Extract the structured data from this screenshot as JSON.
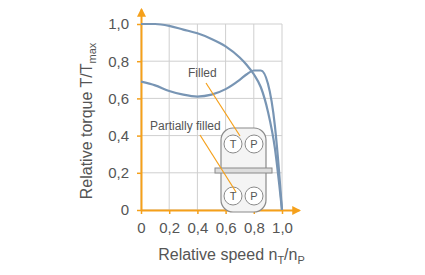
{
  "chart_data": {
    "type": "line",
    "x_label": [
      {
        "text": "Relative speed n"
      },
      {
        "sub": "T"
      },
      {
        "text": "/n"
      },
      {
        "sub": "P"
      }
    ],
    "y_label": [
      {
        "text": "Relative torque T/T"
      },
      {
        "sub": "max"
      }
    ],
    "x": [
      0,
      0.1,
      0.2,
      0.3,
      0.4,
      0.5,
      0.6,
      0.7,
      0.75,
      0.8,
      0.85,
      0.9,
      0.95,
      0.98,
      1.0
    ],
    "series": [
      {
        "name": "Filled",
        "color": "#7895b4",
        "values": [
          1.0,
          1.0,
          0.99,
          0.97,
          0.95,
          0.92,
          0.88,
          0.82,
          0.78,
          0.73,
          0.66,
          0.53,
          0.33,
          0.14,
          0
        ]
      },
      {
        "name": "Partially filled",
        "color": "#7895b4",
        "values": [
          0.69,
          0.67,
          0.64,
          0.62,
          0.61,
          0.62,
          0.65,
          0.7,
          0.73,
          0.75,
          0.75,
          0.68,
          0.45,
          0.2,
          0
        ]
      }
    ],
    "xlim": [
      0,
      1.12
    ],
    "ylim": [
      0,
      1.08
    ],
    "xticks": [
      0,
      {
        "value": 0.2,
        "label": "0,2"
      },
      {
        "value": 0.4,
        "label": "0,4"
      },
      {
        "value": 0.6,
        "label": "0,6"
      },
      {
        "value": 0.8,
        "label": "0,8"
      },
      {
        "value": 1.0,
        "label": "1,0"
      }
    ],
    "yticks": [
      0,
      {
        "value": 0.2,
        "label": "0,2"
      },
      {
        "value": 0.4,
        "label": "0,4"
      },
      {
        "value": 0.6,
        "label": "0,6"
      },
      {
        "value": 0.8,
        "label": "0,8"
      },
      {
        "value": 1.0,
        "label": "1,0"
      }
    ],
    "grid": true,
    "inset": {
      "labels": [
        "T",
        "P",
        "T",
        "P"
      ]
    }
  }
}
